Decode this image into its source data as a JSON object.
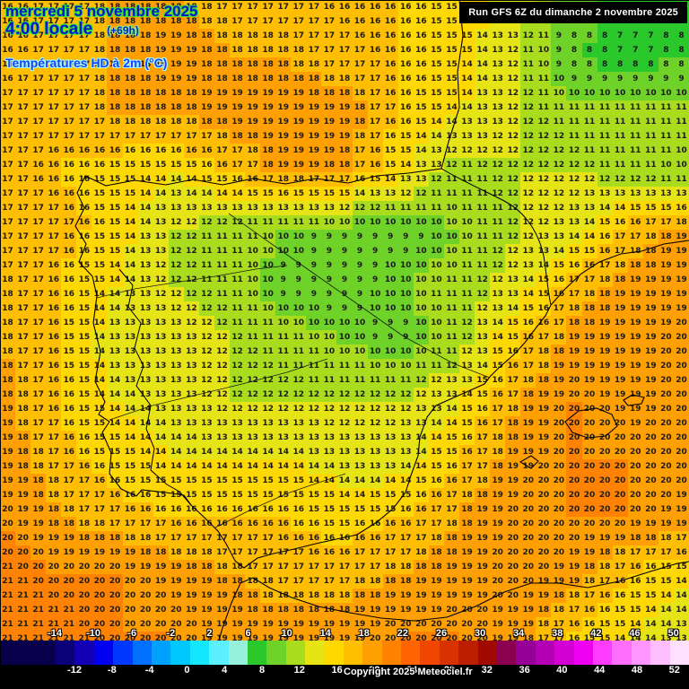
{
  "header": {
    "date_line": "mercredi 5 novembre 2025",
    "time_line": "4:00 locale",
    "offset_label": "(+69h)",
    "subtitle": "Températures HD à 2m (°C)",
    "run_label": "Run GFS 6Z du dimanche 2 novembre 2025"
  },
  "footer": {
    "copyright": "Copyright 2025 Meteociel.fr"
  },
  "scale": {
    "top_labels": [
      "-14",
      "-10",
      "-6",
      "-2",
      "2",
      "6",
      "10",
      "14",
      "18",
      "22",
      "26",
      "30",
      "34",
      "38",
      "42",
      "46",
      "50"
    ],
    "bottom_labels": [
      "-12",
      "-8",
      "-4",
      "0",
      "4",
      "8",
      "12",
      "16",
      "20",
      "24",
      "28",
      "32",
      "36",
      "40",
      "44",
      "48",
      "52"
    ],
    "pad_color": "#08004b",
    "colors": [
      "#0a0078",
      "#1400b4",
      "#0000f0",
      "#0038ff",
      "#0070ff",
      "#00a0ff",
      "#00c8ff",
      "#14e6ff",
      "#5af0ff",
      "#96f0dc",
      "#2ac82a",
      "#6ed228",
      "#aadc1e",
      "#e6e414",
      "#ffd800",
      "#ffbe00",
      "#ffa000",
      "#ff8200",
      "#ff6400",
      "#f04600",
      "#d73200",
      "#be1e00",
      "#a00a00",
      "#8c0050",
      "#960096",
      "#b400b4",
      "#d200d2",
      "#f000f0",
      "#ff3cff",
      "#ff6eff",
      "#ff96ff",
      "#ffbeff",
      "#ffe1ff"
    ]
  },
  "map": {
    "temp_min": -14,
    "temp_step": 2,
    "cols": 45,
    "rows": 48,
    "field_size": 13,
    "field": [
      [
        16,
        17,
        18,
        18,
        17,
        17,
        16,
        16,
        15,
        13,
        9,
        7,
        8
      ],
      [
        16,
        17,
        18,
        19,
        18,
        18,
        17,
        16,
        15,
        12,
        8,
        7,
        8
      ],
      [
        17,
        17,
        18,
        18,
        19,
        19,
        19,
        16,
        14,
        12,
        11,
        11,
        11
      ],
      [
        17,
        16,
        15,
        14,
        16,
        19,
        18,
        14,
        11,
        12,
        12,
        11,
        10
      ],
      [
        17,
        17,
        15,
        12,
        11,
        10,
        9,
        9,
        10,
        12,
        13,
        17,
        19
      ],
      [
        18,
        16,
        14,
        12,
        11,
        9,
        9,
        10,
        11,
        13,
        17,
        19,
        19
      ],
      [
        18,
        16,
        13,
        13,
        12,
        11,
        10,
        9,
        11,
        16,
        19,
        19,
        20
      ],
      [
        19,
        16,
        14,
        13,
        12,
        12,
        12,
        12,
        14,
        18,
        20,
        19,
        20
      ],
      [
        19,
        17,
        15,
        14,
        14,
        14,
        13,
        13,
        16,
        19,
        20,
        20,
        20
      ],
      [
        20,
        18,
        17,
        16,
        16,
        16,
        15,
        16,
        18,
        20,
        20,
        20,
        19
      ],
      [
        21,
        20,
        20,
        19,
        18,
        17,
        17,
        18,
        19,
        20,
        19,
        16,
        14
      ],
      [
        21,
        21,
        20,
        20,
        19,
        19,
        19,
        20,
        20,
        19,
        16,
        14,
        13
      ],
      [
        21,
        21,
        21,
        20,
        20,
        20,
        20,
        20,
        20,
        18,
        15,
        13,
        13
      ]
    ]
  }
}
